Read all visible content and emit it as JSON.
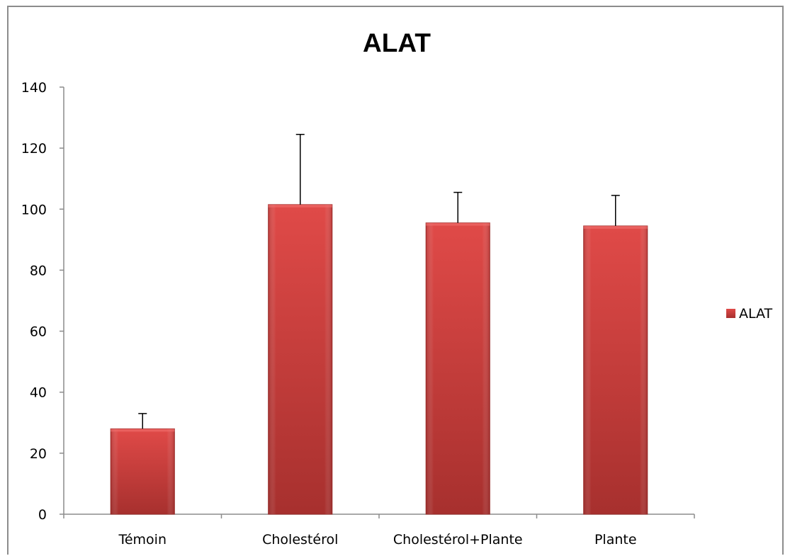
{
  "chart_data": {
    "type": "bar",
    "title": "ALAT",
    "xlabel": "",
    "ylabel": "",
    "categories": [
      "Témoin",
      "Cholestérol",
      "Cholestérol+Plante",
      "Plante"
    ],
    "series": [
      {
        "name": "ALAT",
        "values": [
          28,
          101.5,
          95.5,
          94.5
        ],
        "error_plus": [
          5,
          23,
          10,
          10
        ],
        "color": "#c0392b"
      }
    ],
    "ylim": [
      0,
      140
    ],
    "yticks": [
      "0",
      "20",
      "40",
      "60",
      "80",
      "100",
      "120",
      "140"
    ],
    "grid": false,
    "legend_position": "right"
  }
}
